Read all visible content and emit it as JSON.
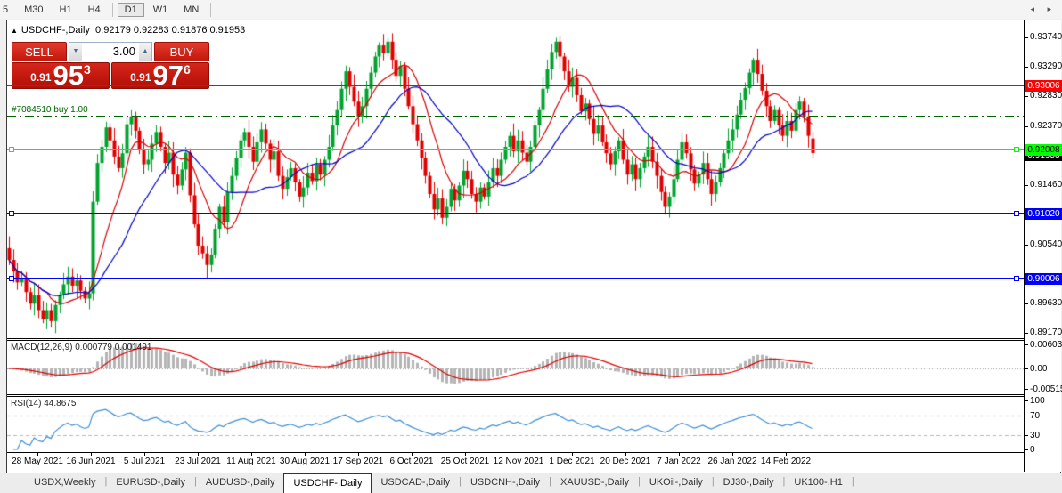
{
  "toolbar": {
    "timeframes": [
      {
        "label": "5",
        "active": false
      },
      {
        "label": "M30",
        "active": false
      },
      {
        "label": "H1",
        "active": false
      },
      {
        "label": "H4",
        "active": false
      },
      {
        "label": "D1",
        "active": true
      },
      {
        "label": "W1",
        "active": false
      },
      {
        "label": "MN",
        "active": false
      }
    ]
  },
  "chart": {
    "title": {
      "symbol": "USDCHF-,Daily",
      "ohlc": "0.92179 0.92283 0.91876 0.91953"
    },
    "trade_panel": {
      "sell_label": "SELL",
      "buy_label": "BUY",
      "volume": "3.00",
      "spin_down_icon": "▼",
      "spin_up_icon": "▲",
      "sell_quote": {
        "prefix": "0.91",
        "big": "95",
        "sup": "3"
      },
      "buy_quote": {
        "prefix": "0.91",
        "big": "97",
        "sup": "6"
      }
    },
    "position_label": "#7084510 buy 1.00",
    "current_price_badge": "0.91953",
    "price_ticks": [
      "0.93740",
      "0.93290",
      "0.92830",
      "0.92370",
      "0.91460",
      "0.90540",
      "0.89630",
      "0.89170"
    ],
    "levels": [
      {
        "name": "resistance-line",
        "price": 0.93006,
        "label": "0.93006",
        "color": "#fe0000",
        "style": "solid",
        "badge_bg": "#fe0000",
        "badge_fg": "#fff",
        "markers": false
      },
      {
        "name": "open-position-line",
        "price": 0.9252,
        "label": "",
        "color": "#006600",
        "style": "dashdot",
        "markers": false
      },
      {
        "name": "entry-level-line",
        "price": 0.92008,
        "label": "0.92008",
        "color": "#00ff00",
        "style": "solid",
        "badge_bg": "#00ff00",
        "badge_fg": "#000",
        "markers": true
      },
      {
        "name": "support-line-1",
        "price": 0.9102,
        "label": "0.91020",
        "color": "#0000ff",
        "style": "solid",
        "badge_bg": "#0000ff",
        "badge_fg": "#fff",
        "markers": true
      },
      {
        "name": "support-line-2",
        "price": 0.90006,
        "label": "0.90006",
        "color": "#0000ff",
        "style": "solid",
        "badge_bg": "#0000ff",
        "badge_fg": "#fff",
        "markers": true
      }
    ]
  },
  "macd": {
    "label": "MACD(12,26,9) 0.000779 0.001491",
    "ticks": [
      "0.006034",
      "0.00",
      "-0.005156"
    ],
    "value": 0.000779,
    "signal": 0.001491
  },
  "rsi": {
    "label": "RSI(14) 44.8675",
    "value": 44.8675,
    "ticks": [
      "100",
      "70",
      "30",
      "0"
    ],
    "level_lines": [
      70,
      30
    ]
  },
  "date_axis": [
    "28 May 2021",
    "16 Jun 2021",
    "5 Jul 2021",
    "23 Jul 2021",
    "11 Aug 2021",
    "30 Aug 2021",
    "17 Sep 2021",
    "6 Oct 2021",
    "25 Oct 2021",
    "12 Nov 2021",
    "1 Dec 2021",
    "20 Dec 2021",
    "7 Jan 2022",
    "26 Jan 2022",
    "14 Feb 2022"
  ],
  "tab_bar": {
    "tabs": [
      {
        "label": "USDX,Weekly",
        "active": false
      },
      {
        "label": "EURUSD-,Daily",
        "active": false
      },
      {
        "label": "AUDUSD-,Daily",
        "active": false
      },
      {
        "label": "USDCHF-,Daily",
        "active": true
      },
      {
        "label": "USDCAD-,Daily",
        "active": false
      },
      {
        "label": "USDCNH-,Daily",
        "active": false
      },
      {
        "label": "XAUUSD-,Daily",
        "active": false
      },
      {
        "label": "UKOil-,Daily",
        "active": false
      },
      {
        "label": "DJ30-,Daily",
        "active": false
      },
      {
        "label": "UK100-,H1",
        "active": false
      }
    ],
    "nav_icons": "◂ ▸"
  },
  "colors": {
    "bull": "#00a32e",
    "bear": "#e00000",
    "ma_fast": "#d40000",
    "ma_slow": "#0000c8",
    "macd_hist": "#b4b4b4",
    "macd_signal": "#e00000",
    "rsi_line": "#3f8fd4",
    "rsi_dash": "#b8b8b8"
  },
  "chart_data": {
    "type": "candlestick",
    "symbol": "USDCHF",
    "timeframe": "Daily",
    "title": "USDCHF-,Daily",
    "price_axis": {
      "top": 0.9398,
      "bottom": 0.891
    },
    "x_tick_labels": [
      "28 May 2021",
      "16 Jun 2021",
      "5 Jul 2021",
      "23 Jul 2021",
      "11 Aug 2021",
      "30 Aug 2021",
      "17 Sep 2021",
      "6 Oct 2021",
      "25 Oct 2021",
      "12 Nov 2021",
      "1 Dec 2021",
      "20 Dec 2021",
      "7 Jan 2022",
      "26 Jan 2022",
      "14 Feb 2022"
    ],
    "y_tick_values": [
      0.9374,
      0.9329,
      0.9283,
      0.9237,
      0.9146,
      0.9054,
      0.8963,
      0.8917
    ],
    "horizontal_levels": [
      0.93006,
      0.9252,
      0.92008,
      0.9102,
      0.90006
    ],
    "last_candle": {
      "open": 0.92179,
      "high": 0.92283,
      "low": 0.91876,
      "close": 0.91953
    },
    "first_open": 0.9048,
    "closes": [
      0.903,
      0.9012,
      0.8995,
      0.9002,
      0.898,
      0.8962,
      0.8975,
      0.8952,
      0.8938,
      0.8952,
      0.8935,
      0.896,
      0.8976,
      0.8992,
      0.9004,
      0.899,
      0.8998,
      0.8982,
      0.897,
      0.8978,
      0.912,
      0.918,
      0.9205,
      0.9235,
      0.9215,
      0.919,
      0.9172,
      0.9195,
      0.924,
      0.9252,
      0.923,
      0.92,
      0.9178,
      0.9185,
      0.921,
      0.9228,
      0.9205,
      0.918,
      0.9196,
      0.9162,
      0.9145,
      0.917,
      0.9196,
      0.913,
      0.9085,
      0.9052,
      0.904,
      0.9022,
      0.9038,
      0.9078,
      0.9112,
      0.9088,
      0.9135,
      0.916,
      0.9188,
      0.9215,
      0.9228,
      0.9205,
      0.9182,
      0.9212,
      0.9232,
      0.921,
      0.9185,
      0.9198,
      0.916,
      0.914,
      0.9158,
      0.9172,
      0.915,
      0.9128,
      0.9142,
      0.9165,
      0.9152,
      0.9178,
      0.9162,
      0.9185,
      0.9205,
      0.9238,
      0.9262,
      0.9295,
      0.9322,
      0.9298,
      0.9275,
      0.9252,
      0.9268,
      0.9295,
      0.932,
      0.9345,
      0.9362,
      0.935,
      0.9368,
      0.934,
      0.9315,
      0.933,
      0.9295,
      0.9268,
      0.924,
      0.9215,
      0.9188,
      0.916,
      0.9132,
      0.9108,
      0.9125,
      0.9095,
      0.9112,
      0.914,
      0.9122,
      0.9145,
      0.9168,
      0.9155,
      0.9132,
      0.912,
      0.9142,
      0.9128,
      0.915,
      0.9172,
      0.916,
      0.9185,
      0.9205,
      0.9222,
      0.9198,
      0.9215,
      0.9196,
      0.9182,
      0.9205,
      0.9238,
      0.9262,
      0.9295,
      0.9325,
      0.9352,
      0.9368,
      0.9345,
      0.9322,
      0.9298,
      0.9312,
      0.9285,
      0.926,
      0.9272,
      0.9248,
      0.9225,
      0.9238,
      0.9212,
      0.9195,
      0.9178,
      0.9198,
      0.9215,
      0.9185,
      0.9162,
      0.9178,
      0.9155,
      0.9172,
      0.919,
      0.9205,
      0.9182,
      0.916,
      0.9135,
      0.9112,
      0.9128,
      0.9155,
      0.9185,
      0.9212,
      0.9195,
      0.917,
      0.9148,
      0.9162,
      0.918,
      0.9155,
      0.9132,
      0.915,
      0.9172,
      0.9195,
      0.9215,
      0.9232,
      0.9255,
      0.9278,
      0.9296,
      0.932,
      0.934,
      0.9318,
      0.9292,
      0.9268,
      0.9245,
      0.9262,
      0.9238,
      0.9222,
      0.9245,
      0.923,
      0.9262,
      0.9275,
      0.9252,
      0.9222,
      0.91953
    ],
    "overrides": {
      "10": {
        "l": 0.8925
      },
      "47": {
        "l": 0.9
      },
      "90": {
        "h": 0.9374
      },
      "103": {
        "l": 0.9085
      },
      "130": {
        "h": 0.9374
      },
      "156": {
        "l": 0.91
      },
      "177": {
        "h": 0.9343
      },
      "191": {
        "o": 0.92179,
        "h": 0.92283,
        "l": 0.91876
      }
    },
    "ma_fast_period": 10,
    "ma_slow_period": 21,
    "indicators": [
      {
        "name": "MACD",
        "params": [
          12,
          26,
          9
        ],
        "value": 0.000779,
        "signal": 0.001491,
        "range": [
          -0.005156,
          0.006034
        ]
      },
      {
        "name": "RSI",
        "params": [
          14
        ],
        "value": 44.8675,
        "levels": [
          70,
          30
        ],
        "range": [
          0,
          100
        ]
      }
    ]
  }
}
